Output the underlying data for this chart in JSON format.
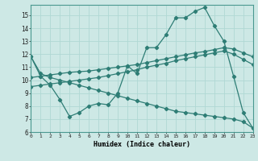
{
  "xlabel": "Humidex (Indice chaleur)",
  "bg_color": "#cde8e5",
  "line_color": "#2e7d75",
  "grid_color": "#b0d8d4",
  "line1_x": [
    0,
    1,
    2,
    3,
    4,
    5,
    6,
    7,
    8,
    9,
    10,
    11,
    12,
    13,
    14,
    15,
    16,
    17,
    18,
    19,
    20,
    21,
    22,
    23
  ],
  "line1_y": [
    11.8,
    10.3,
    9.6,
    8.5,
    7.2,
    7.5,
    8.0,
    8.2,
    8.1,
    9.0,
    11.1,
    10.5,
    12.5,
    12.5,
    13.5,
    14.8,
    14.8,
    15.3,
    15.6,
    14.2,
    13.0,
    10.3,
    7.5,
    6.3
  ],
  "line2_x": [
    0,
    1,
    2,
    3,
    4,
    5,
    6,
    7,
    8,
    9,
    10,
    11,
    12,
    13,
    14,
    15,
    16,
    17,
    18,
    19,
    20,
    21,
    22,
    23
  ],
  "line2_y": [
    9.5,
    9.6,
    9.7,
    9.8,
    9.9,
    10.0,
    10.1,
    10.2,
    10.35,
    10.5,
    10.65,
    10.8,
    11.0,
    11.15,
    11.3,
    11.5,
    11.65,
    11.8,
    11.95,
    12.1,
    12.25,
    12.0,
    11.6,
    11.2
  ],
  "line3_x": [
    0,
    1,
    2,
    3,
    4,
    5,
    6,
    7,
    8,
    9,
    10,
    11,
    12,
    13,
    14,
    15,
    16,
    17,
    18,
    19,
    20,
    21,
    22,
    23
  ],
  "line3_y": [
    10.2,
    10.3,
    10.4,
    10.5,
    10.6,
    10.65,
    10.7,
    10.8,
    10.9,
    11.0,
    11.1,
    11.2,
    11.35,
    11.5,
    11.65,
    11.8,
    11.95,
    12.1,
    12.2,
    12.35,
    12.5,
    12.4,
    12.1,
    11.8
  ],
  "line4_x": [
    0,
    1,
    2,
    3,
    4,
    5,
    6,
    7,
    8,
    9,
    10,
    11,
    12,
    13,
    14,
    15,
    16,
    17,
    18,
    19,
    20,
    21,
    22,
    23
  ],
  "line4_y": [
    11.8,
    10.5,
    10.2,
    10.0,
    9.8,
    9.6,
    9.4,
    9.2,
    9.0,
    8.8,
    8.6,
    8.4,
    8.2,
    8.0,
    7.8,
    7.6,
    7.5,
    7.4,
    7.3,
    7.2,
    7.1,
    7.0,
    6.8,
    6.3
  ],
  "xlim": [
    0,
    23
  ],
  "ylim": [
    6,
    15.8
  ],
  "yticks": [
    6,
    7,
    8,
    9,
    10,
    11,
    12,
    13,
    14,
    15
  ],
  "xticks": [
    0,
    1,
    2,
    3,
    4,
    5,
    6,
    7,
    8,
    9,
    10,
    11,
    12,
    13,
    14,
    15,
    16,
    17,
    18,
    19,
    20,
    21,
    22,
    23
  ]
}
